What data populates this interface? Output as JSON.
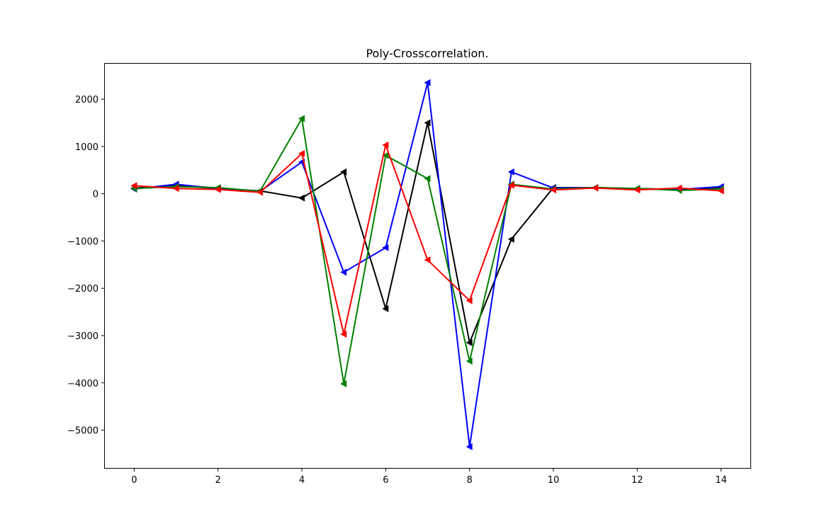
{
  "chart_data": {
    "type": "line",
    "title": "Poly-Crosscorrelation.",
    "xlabel": "",
    "ylabel": "",
    "xlim": [
      -0.7,
      14.7
    ],
    "ylim": [
      -5800,
      2750
    ],
    "xticks": [
      0,
      2,
      4,
      6,
      8,
      10,
      12,
      14
    ],
    "xtick_labels": [
      "0",
      "2",
      "4",
      "6",
      "8",
      "10",
      "12",
      "14"
    ],
    "yticks": [
      -5000,
      -4000,
      -3000,
      -2000,
      -1000,
      0,
      1000,
      2000
    ],
    "ytick_labels": [
      "−5000",
      "−4000",
      "−3000",
      "−2000",
      "−1000",
      "0",
      "1000",
      "2000"
    ],
    "grid": false,
    "marker": "triangle-left",
    "x": [
      0,
      1,
      2,
      3,
      4,
      5,
      6,
      7,
      8,
      9,
      10,
      11,
      12,
      13,
      14
    ],
    "series": [
      {
        "color": "#000000",
        "values": [
          120,
          170,
          110,
          60,
          -90,
          460,
          -2430,
          1500,
          -3150,
          -960,
          130,
          130,
          110,
          90,
          130
        ]
      },
      {
        "color": "#0000ff",
        "values": [
          100,
          200,
          110,
          50,
          670,
          -1660,
          -1140,
          2350,
          -5350,
          460,
          120,
          130,
          100,
          90,
          150
        ]
      },
      {
        "color": "#008000",
        "values": [
          110,
          150,
          130,
          50,
          1590,
          -4020,
          810,
          320,
          -3540,
          200,
          100,
          130,
          110,
          70,
          100
        ]
      },
      {
        "color": "#ff0000",
        "values": [
          170,
          110,
          90,
          30,
          850,
          -2970,
          1030,
          -1400,
          -2260,
          180,
          80,
          120,
          80,
          120,
          60
        ]
      }
    ]
  }
}
